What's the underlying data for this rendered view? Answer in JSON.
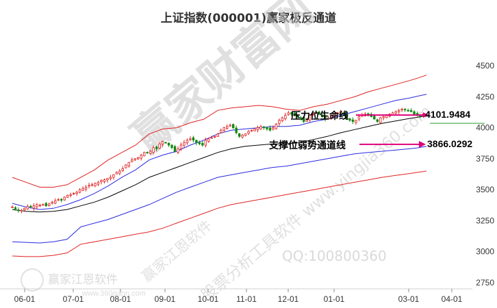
{
  "chart_data": {
    "type": "line",
    "title": "上证指数(000001)赢家极反通道",
    "x_ticks": [
      "06-01",
      "07-01",
      "08-01",
      "09-01",
      "10-01",
      "11-01",
      "12-01",
      "01-01",
      "03-01",
      "04-01"
    ],
    "y_ticks": [
      2750,
      3000,
      3250,
      3500,
      3750,
      4000,
      4250,
      4500
    ],
    "ylim": [
      2700,
      4600
    ],
    "grid": false,
    "axis_side": "right",
    "series": [
      {
        "role": "outer-upper-band",
        "color": "#e02020",
        "points": [
          [
            0,
            3600
          ],
          [
            20,
            3560
          ],
          [
            40,
            3520
          ],
          [
            60,
            3520
          ],
          [
            80,
            3540
          ],
          [
            100,
            3600
          ],
          [
            120,
            3660
          ],
          [
            140,
            3740
          ],
          [
            160,
            3800
          ],
          [
            180,
            3860
          ],
          [
            200,
            3950
          ],
          [
            220,
            3990
          ],
          [
            240,
            4000
          ],
          [
            260,
            4040
          ],
          [
            280,
            4070
          ],
          [
            300,
            4140
          ],
          [
            320,
            4160
          ],
          [
            340,
            4170
          ],
          [
            360,
            4180
          ],
          [
            380,
            4170
          ],
          [
            400,
            4150
          ],
          [
            420,
            4140
          ],
          [
            440,
            4170
          ],
          [
            460,
            4190
          ],
          [
            480,
            4220
          ],
          [
            500,
            4250
          ],
          [
            520,
            4290
          ],
          [
            540,
            4320
          ],
          [
            560,
            4350
          ],
          [
            580,
            4380
          ],
          [
            592,
            4400
          ],
          [
            605,
            4425
          ]
        ]
      },
      {
        "role": "inner-upper-band",
        "color": "#2828e0",
        "points": [
          [
            0,
            3390
          ],
          [
            20,
            3360
          ],
          [
            40,
            3340
          ],
          [
            60,
            3350
          ],
          [
            80,
            3380
          ],
          [
            100,
            3420
          ],
          [
            120,
            3470
          ],
          [
            140,
            3530
          ],
          [
            160,
            3600
          ],
          [
            180,
            3660
          ],
          [
            200,
            3740
          ],
          [
            220,
            3780
          ],
          [
            240,
            3810
          ],
          [
            260,
            3860
          ],
          [
            280,
            3900
          ],
          [
            300,
            3950
          ],
          [
            320,
            3980
          ],
          [
            340,
            3990
          ],
          [
            360,
            4000
          ],
          [
            380,
            4010
          ],
          [
            400,
            4010
          ],
          [
            420,
            4020
          ],
          [
            440,
            4050
          ],
          [
            460,
            4070
          ],
          [
            480,
            4100
          ],
          [
            500,
            4130
          ],
          [
            520,
            4160
          ],
          [
            540,
            4190
          ],
          [
            560,
            4220
          ],
          [
            580,
            4240
          ],
          [
            592,
            4255
          ],
          [
            605,
            4270
          ]
        ]
      },
      {
        "role": "middle-line",
        "color": "#000000",
        "points": [
          [
            0,
            3340
          ],
          [
            20,
            3325
          ],
          [
            40,
            3320
          ],
          [
            60,
            3325
          ],
          [
            80,
            3340
          ],
          [
            100,
            3370
          ],
          [
            120,
            3400
          ],
          [
            140,
            3440
          ],
          [
            160,
            3490
          ],
          [
            180,
            3540
          ],
          [
            200,
            3600
          ],
          [
            220,
            3640
          ],
          [
            240,
            3680
          ],
          [
            260,
            3720
          ],
          [
            280,
            3760
          ],
          [
            300,
            3800
          ],
          [
            320,
            3830
          ],
          [
            340,
            3850
          ],
          [
            360,
            3860
          ],
          [
            380,
            3870
          ],
          [
            400,
            3870
          ],
          [
            420,
            3880
          ],
          [
            440,
            3905
          ],
          [
            460,
            3930
          ],
          [
            480,
            3960
          ],
          [
            500,
            3985
          ],
          [
            520,
            4010
          ],
          [
            540,
            4035
          ],
          [
            560,
            4055
          ],
          [
            580,
            4075
          ],
          [
            592,
            4085
          ],
          [
            605,
            4095
          ]
        ]
      },
      {
        "role": "inner-lower-band",
        "color": "#2828e0",
        "points": [
          [
            0,
            3080
          ],
          [
            20,
            3075
          ],
          [
            40,
            3070
          ],
          [
            60,
            3080
          ],
          [
            80,
            3100
          ],
          [
            100,
            3200
          ],
          [
            120,
            3230
          ],
          [
            140,
            3260
          ],
          [
            160,
            3300
          ],
          [
            180,
            3340
          ],
          [
            200,
            3380
          ],
          [
            220,
            3430
          ],
          [
            240,
            3480
          ],
          [
            260,
            3520
          ],
          [
            280,
            3560
          ],
          [
            300,
            3600
          ],
          [
            320,
            3620
          ],
          [
            340,
            3640
          ],
          [
            360,
            3660
          ],
          [
            380,
            3680
          ],
          [
            400,
            3690
          ],
          [
            420,
            3710
          ],
          [
            440,
            3730
          ],
          [
            460,
            3750
          ],
          [
            480,
            3770
          ],
          [
            500,
            3790
          ],
          [
            520,
            3800
          ],
          [
            540,
            3810
          ],
          [
            560,
            3820
          ],
          [
            580,
            3830
          ],
          [
            592,
            3838
          ],
          [
            605,
            3850
          ]
        ]
      },
      {
        "role": "outer-lower-band",
        "color": "#e02020",
        "points": [
          [
            0,
            2965
          ],
          [
            20,
            2960
          ],
          [
            40,
            2960
          ],
          [
            60,
            2970
          ],
          [
            80,
            2990
          ],
          [
            100,
            3060
          ],
          [
            120,
            3080
          ],
          [
            140,
            3100
          ],
          [
            160,
            3120
          ],
          [
            180,
            3140
          ],
          [
            200,
            3160
          ],
          [
            220,
            3190
          ],
          [
            240,
            3230
          ],
          [
            260,
            3270
          ],
          [
            280,
            3310
          ],
          [
            300,
            3350
          ],
          [
            320,
            3380
          ],
          [
            340,
            3400
          ],
          [
            360,
            3420
          ],
          [
            380,
            3440
          ],
          [
            400,
            3460
          ],
          [
            420,
            3480
          ],
          [
            440,
            3500
          ],
          [
            460,
            3520
          ],
          [
            480,
            3540
          ],
          [
            500,
            3560
          ],
          [
            520,
            3580
          ],
          [
            540,
            3600
          ],
          [
            560,
            3615
          ],
          [
            580,
            3630
          ],
          [
            592,
            3640
          ],
          [
            605,
            3650
          ]
        ]
      }
    ],
    "candles": {
      "up_color": "#e02020",
      "down_color": "#118811",
      "closes": [
        3360,
        3345,
        3330,
        3335,
        3350,
        3365,
        3360,
        3370,
        3380,
        3375,
        3380,
        3370,
        3385,
        3400,
        3410,
        3420,
        3415,
        3440,
        3455,
        3460,
        3470,
        3480,
        3500,
        3510,
        3520,
        3535,
        3540,
        3550,
        3560,
        3575,
        3580,
        3590,
        3600,
        3620,
        3640,
        3650,
        3670,
        3700,
        3720,
        3740,
        3750,
        3760,
        3780,
        3800,
        3800,
        3810,
        3840,
        3830,
        3870,
        3890,
        3880,
        3860,
        3840,
        3810,
        3830,
        3860,
        3880,
        3900,
        3910,
        3900,
        3880,
        3870,
        3860,
        3900,
        3910,
        3920,
        3930,
        3950,
        3980,
        4000,
        4010,
        4020,
        4000,
        3960,
        3930,
        3940,
        3950,
        3970,
        3980,
        3990,
        4000,
        4010,
        4000,
        3990,
        3980,
        4000,
        4030,
        4060,
        4080,
        4100,
        4120,
        4110,
        4100,
        4090,
        4080,
        4050,
        4070,
        4100,
        4110,
        4120,
        4110,
        4090,
        4070,
        4080,
        4100,
        4110,
        4120,
        4130,
        4110,
        4080,
        4060,
        4050,
        4060,
        4090,
        4100,
        4110,
        4100,
        4090,
        4070,
        4050,
        4080,
        4090,
        4100,
        4110,
        4120,
        4130,
        4140,
        4150,
        4145,
        4140,
        4130,
        4110,
        4100,
        4090,
        4110,
        4101.9484
      ]
    },
    "annotations": [
      {
        "label": "压力位生命线",
        "value": 4101.9484,
        "value_text": "4101.9484",
        "arrow_color": "#e0007a"
      },
      {
        "label": "支撑位弱势通道线",
        "value": 3866.0292,
        "value_text": "3866.0292",
        "arrow_color": "#e0007a"
      }
    ]
  },
  "watermarks": {
    "main": "赢家财富网",
    "sub1": "赢家江恩软件",
    "sub2": "股票分析工具软件 www.yingjia360.com",
    "qq": "QQ:100800360",
    "logo_text": "赢家江恩软件",
    "logo_url": "www.360gann.com"
  }
}
